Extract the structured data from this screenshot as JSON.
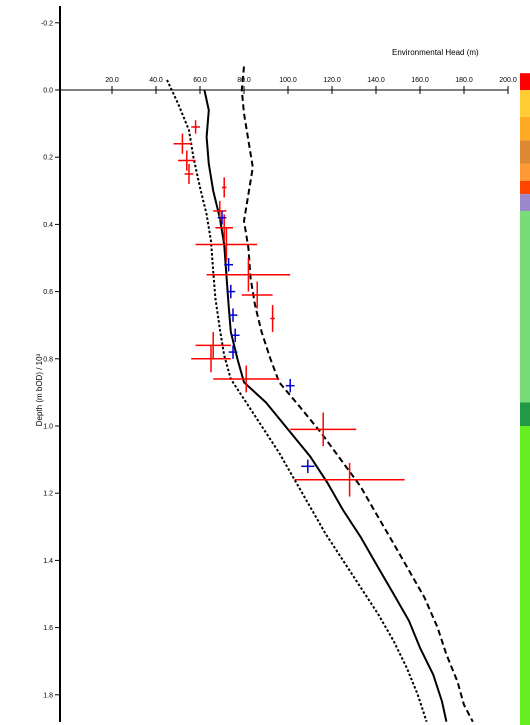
{
  "chart_data": {
    "type": "line",
    "title": "",
    "xlabel": "Environmental Head (m)",
    "ylabel": "Depth (m bOD) / 10³",
    "xlim": [
      0,
      200
    ],
    "ylim": [
      -0.2,
      1.9
    ],
    "x_ticks": [
      20,
      40,
      60,
      80,
      100,
      120,
      140,
      160,
      180,
      200
    ],
    "x_tick_labels": [
      "20.0",
      "40.0",
      "60.0",
      "80.0",
      "100.0",
      "120.0",
      "140.0",
      "160.0",
      "180.0",
      "200.0"
    ],
    "y_ticks": [
      -0.2,
      0.0,
      0.2,
      0.4,
      0.6,
      0.8,
      1.0,
      1.2,
      1.4,
      1.6,
      1.8
    ],
    "y_tick_labels": [
      "-0.2",
      "0.0",
      "0.2",
      "0.4",
      "0.6",
      "0.8",
      "1.0",
      "1.2",
      "1.4",
      "1.6",
      "1.8"
    ],
    "grid": false,
    "series": [
      {
        "style": "solid",
        "color": "#000000",
        "points": [
          [
            62,
            0.0
          ],
          [
            64,
            0.06
          ],
          [
            63,
            0.14
          ],
          [
            64,
            0.22
          ],
          [
            66,
            0.3
          ],
          [
            69,
            0.38
          ],
          [
            71,
            0.46
          ],
          [
            72,
            0.55
          ],
          [
            73,
            0.64
          ],
          [
            74,
            0.72
          ],
          [
            77,
            0.8
          ],
          [
            80,
            0.87
          ],
          [
            90,
            0.93
          ],
          [
            100,
            1.01
          ],
          [
            110,
            1.09
          ],
          [
            118,
            1.17
          ],
          [
            125,
            1.25
          ],
          [
            133,
            1.33
          ],
          [
            140,
            1.41
          ],
          [
            148,
            1.5
          ],
          [
            155,
            1.58
          ],
          [
            160,
            1.66
          ],
          [
            166,
            1.74
          ],
          [
            170,
            1.82
          ],
          [
            172,
            1.88
          ]
        ]
      },
      {
        "style": "dotted",
        "color": "#000000",
        "points": [
          [
            45,
            -0.03
          ],
          [
            50,
            0.04
          ],
          [
            55,
            0.12
          ],
          [
            57,
            0.2
          ],
          [
            60,
            0.29
          ],
          [
            63,
            0.37
          ],
          [
            65,
            0.45
          ],
          [
            66,
            0.54
          ],
          [
            67,
            0.62
          ],
          [
            69,
            0.71
          ],
          [
            71,
            0.79
          ],
          [
            74,
            0.86
          ],
          [
            80,
            0.92
          ],
          [
            88,
            1.0
          ],
          [
            96,
            1.08
          ],
          [
            103,
            1.16
          ],
          [
            110,
            1.24
          ],
          [
            117,
            1.32
          ],
          [
            125,
            1.4
          ],
          [
            133,
            1.48
          ],
          [
            141,
            1.56
          ],
          [
            148,
            1.64
          ],
          [
            154,
            1.72
          ],
          [
            159,
            1.8
          ],
          [
            163,
            1.88
          ]
        ]
      },
      {
        "style": "dashed",
        "color": "#000000",
        "points": [
          [
            80,
            -0.07
          ],
          [
            79,
            0.0
          ],
          [
            80,
            0.07
          ],
          [
            82,
            0.15
          ],
          [
            84,
            0.23
          ],
          [
            82,
            0.31
          ],
          [
            80,
            0.39
          ],
          [
            82,
            0.47
          ],
          [
            83,
            0.56
          ],
          [
            85,
            0.64
          ],
          [
            88,
            0.72
          ],
          [
            92,
            0.8
          ],
          [
            96,
            0.87
          ],
          [
            105,
            0.94
          ],
          [
            115,
            1.02
          ],
          [
            124,
            1.1
          ],
          [
            133,
            1.18
          ],
          [
            140,
            1.26
          ],
          [
            148,
            1.35
          ],
          [
            155,
            1.43
          ],
          [
            162,
            1.51
          ],
          [
            168,
            1.6
          ],
          [
            172,
            1.68
          ],
          [
            177,
            1.76
          ],
          [
            180,
            1.83
          ],
          [
            184,
            1.88
          ]
        ]
      }
    ],
    "measurements": [
      {
        "color": "#ff0000",
        "x": 58,
        "y": 0.11,
        "xerr": 2,
        "yerr": 0.02
      },
      {
        "color": "#ff0000",
        "x": 52,
        "y": 0.16,
        "xerr": 4,
        "yerr": 0.03
      },
      {
        "color": "#ff0000",
        "x": 54,
        "y": 0.21,
        "xerr": 4,
        "yerr": 0.03
      },
      {
        "color": "#ff0000",
        "x": 55,
        "y": 0.25,
        "xerr": 2,
        "yerr": 0.03
      },
      {
        "color": "#ff0000",
        "x": 71,
        "y": 0.29,
        "xerr": 1,
        "yerr": 0.03
      },
      {
        "color": "#ff0000",
        "x": 69,
        "y": 0.36,
        "xerr": 3,
        "yerr": 0.03
      },
      {
        "color": "#ff0000",
        "x": 71,
        "y": 0.41,
        "xerr": 4,
        "yerr": 0.04
      },
      {
        "color": "#ff0000",
        "x": 72,
        "y": 0.46,
        "xerr": 14,
        "yerr": 0.05
      },
      {
        "color": "#ff0000",
        "x": 82,
        "y": 0.55,
        "xerr": 19,
        "yerr": 0.05
      },
      {
        "color": "#ff0000",
        "x": 86,
        "y": 0.61,
        "xerr": 7,
        "yerr": 0.04
      },
      {
        "color": "#ff0000",
        "x": 93,
        "y": 0.68,
        "xerr": 1,
        "yerr": 0.04
      },
      {
        "color": "#ff0000",
        "x": 66,
        "y": 0.76,
        "xerr": 8,
        "yerr": 0.04
      },
      {
        "color": "#ff0000",
        "x": 65,
        "y": 0.8,
        "xerr": 9,
        "yerr": 0.04
      },
      {
        "color": "#ff0000",
        "x": 81,
        "y": 0.86,
        "xerr": 15,
        "yerr": 0.04
      },
      {
        "color": "#ff0000",
        "x": 116,
        "y": 1.01,
        "xerr": 15,
        "yerr": 0.05
      },
      {
        "color": "#ff0000",
        "x": 128,
        "y": 1.16,
        "xerr": 25,
        "yerr": 0.05
      },
      {
        "color": "#0000cc",
        "x": 70,
        "y": 0.38,
        "xerr": 2,
        "yerr": 0.02
      },
      {
        "color": "#0000cc",
        "x": 73,
        "y": 0.52,
        "xerr": 2,
        "yerr": 0.02
      },
      {
        "color": "#0000cc",
        "x": 74,
        "y": 0.6,
        "xerr": 2,
        "yerr": 0.02
      },
      {
        "color": "#0000cc",
        "x": 75,
        "y": 0.67,
        "xerr": 2,
        "yerr": 0.02
      },
      {
        "color": "#0000cc",
        "x": 76,
        "y": 0.73,
        "xerr": 2,
        "yerr": 0.02
      },
      {
        "color": "#0000cc",
        "x": 75,
        "y": 0.78,
        "xerr": 2,
        "yerr": 0.02
      },
      {
        "color": "#0000cc",
        "x": 101,
        "y": 0.88,
        "xerr": 2,
        "yerr": 0.02
      },
      {
        "color": "#0000cc",
        "x": 109,
        "y": 1.12,
        "xerr": 3,
        "yerr": 0.02
      }
    ],
    "strata": [
      {
        "from": -0.05,
        "to": 0.0,
        "color": "#ff0000"
      },
      {
        "from": 0.0,
        "to": 0.08,
        "color": "#ffcc33"
      },
      {
        "from": 0.08,
        "to": 0.15,
        "color": "#ffaa22"
      },
      {
        "from": 0.15,
        "to": 0.22,
        "color": "#dd8833"
      },
      {
        "from": 0.22,
        "to": 0.27,
        "color": "#ff9933"
      },
      {
        "from": 0.27,
        "to": 0.31,
        "color": "#ff4400"
      },
      {
        "from": 0.31,
        "to": 0.36,
        "color": "#9988cc"
      },
      {
        "from": 0.36,
        "to": 0.93,
        "color": "#77dd77"
      },
      {
        "from": 0.93,
        "to": 1.0,
        "color": "#229944"
      },
      {
        "from": 1.0,
        "to": 1.9,
        "color": "#66ee22"
      }
    ]
  }
}
